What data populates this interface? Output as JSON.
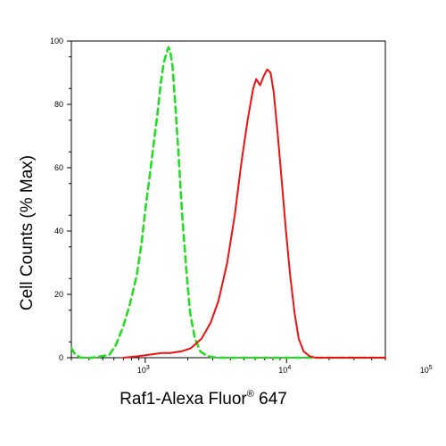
{
  "chart_data": {
    "type": "line",
    "x_scale": "log",
    "xlabel": {
      "prefix": "Raf1-Alexa Fluor",
      "superscript": "®",
      "suffix": " 647"
    },
    "ylabel": "Cell Counts (% Max)",
    "xlim": [
      300,
      50000
    ],
    "ylim": [
      0,
      100
    ],
    "x_ticks": [
      {
        "value": 1000,
        "base": "10",
        "exp": "3"
      },
      {
        "value": 10000,
        "base": "10",
        "exp": "4"
      },
      {
        "value": 100000,
        "base": "10",
        "exp": "5"
      }
    ],
    "y_ticks": [
      0,
      20,
      40,
      60,
      80,
      100
    ],
    "grid": false,
    "legend": "none",
    "series": [
      {
        "color": "#22dd22",
        "style": "dashed",
        "points": [
          [
            300,
            3
          ],
          [
            320,
            1
          ],
          [
            350,
            0
          ],
          [
            420,
            0
          ],
          [
            500,
            0.5
          ],
          [
            560,
            1
          ],
          [
            620,
            4
          ],
          [
            700,
            10
          ],
          [
            780,
            17
          ],
          [
            870,
            26
          ],
          [
            940,
            36
          ],
          [
            1010,
            48
          ],
          [
            1080,
            58
          ],
          [
            1150,
            68
          ],
          [
            1220,
            77
          ],
          [
            1290,
            87
          ],
          [
            1350,
            93
          ],
          [
            1410,
            96
          ],
          [
            1460,
            98
          ],
          [
            1500,
            97
          ],
          [
            1560,
            92
          ],
          [
            1630,
            80
          ],
          [
            1720,
            64
          ],
          [
            1820,
            46
          ],
          [
            1950,
            28
          ],
          [
            2080,
            14
          ],
          [
            2250,
            6
          ],
          [
            2450,
            2
          ],
          [
            2750,
            0.5
          ],
          [
            3200,
            0
          ],
          [
            5000,
            0
          ],
          [
            8000,
            0
          ],
          [
            15000,
            0
          ],
          [
            50000,
            0
          ]
        ]
      },
      {
        "color": "#ee1111",
        "style": "solid",
        "points": [
          [
            700,
            0
          ],
          [
            900,
            0.5
          ],
          [
            1100,
            1
          ],
          [
            1300,
            1.5
          ],
          [
            1500,
            1.5
          ],
          [
            1800,
            2
          ],
          [
            2100,
            3
          ],
          [
            2500,
            6
          ],
          [
            2900,
            11
          ],
          [
            3300,
            18
          ],
          [
            3800,
            30
          ],
          [
            4300,
            45
          ],
          [
            4800,
            62
          ],
          [
            5300,
            75
          ],
          [
            5800,
            85
          ],
          [
            6100,
            88
          ],
          [
            6500,
            86
          ],
          [
            6900,
            89
          ],
          [
            7300,
            91
          ],
          [
            7700,
            90
          ],
          [
            8100,
            84
          ],
          [
            8600,
            72
          ],
          [
            9200,
            57
          ],
          [
            9900,
            40
          ],
          [
            10600,
            26
          ],
          [
            11400,
            14
          ],
          [
            12200,
            6
          ],
          [
            13200,
            2
          ],
          [
            14500,
            0.5
          ],
          [
            16000,
            0
          ],
          [
            20000,
            0
          ],
          [
            50000,
            0
          ]
        ]
      }
    ]
  }
}
